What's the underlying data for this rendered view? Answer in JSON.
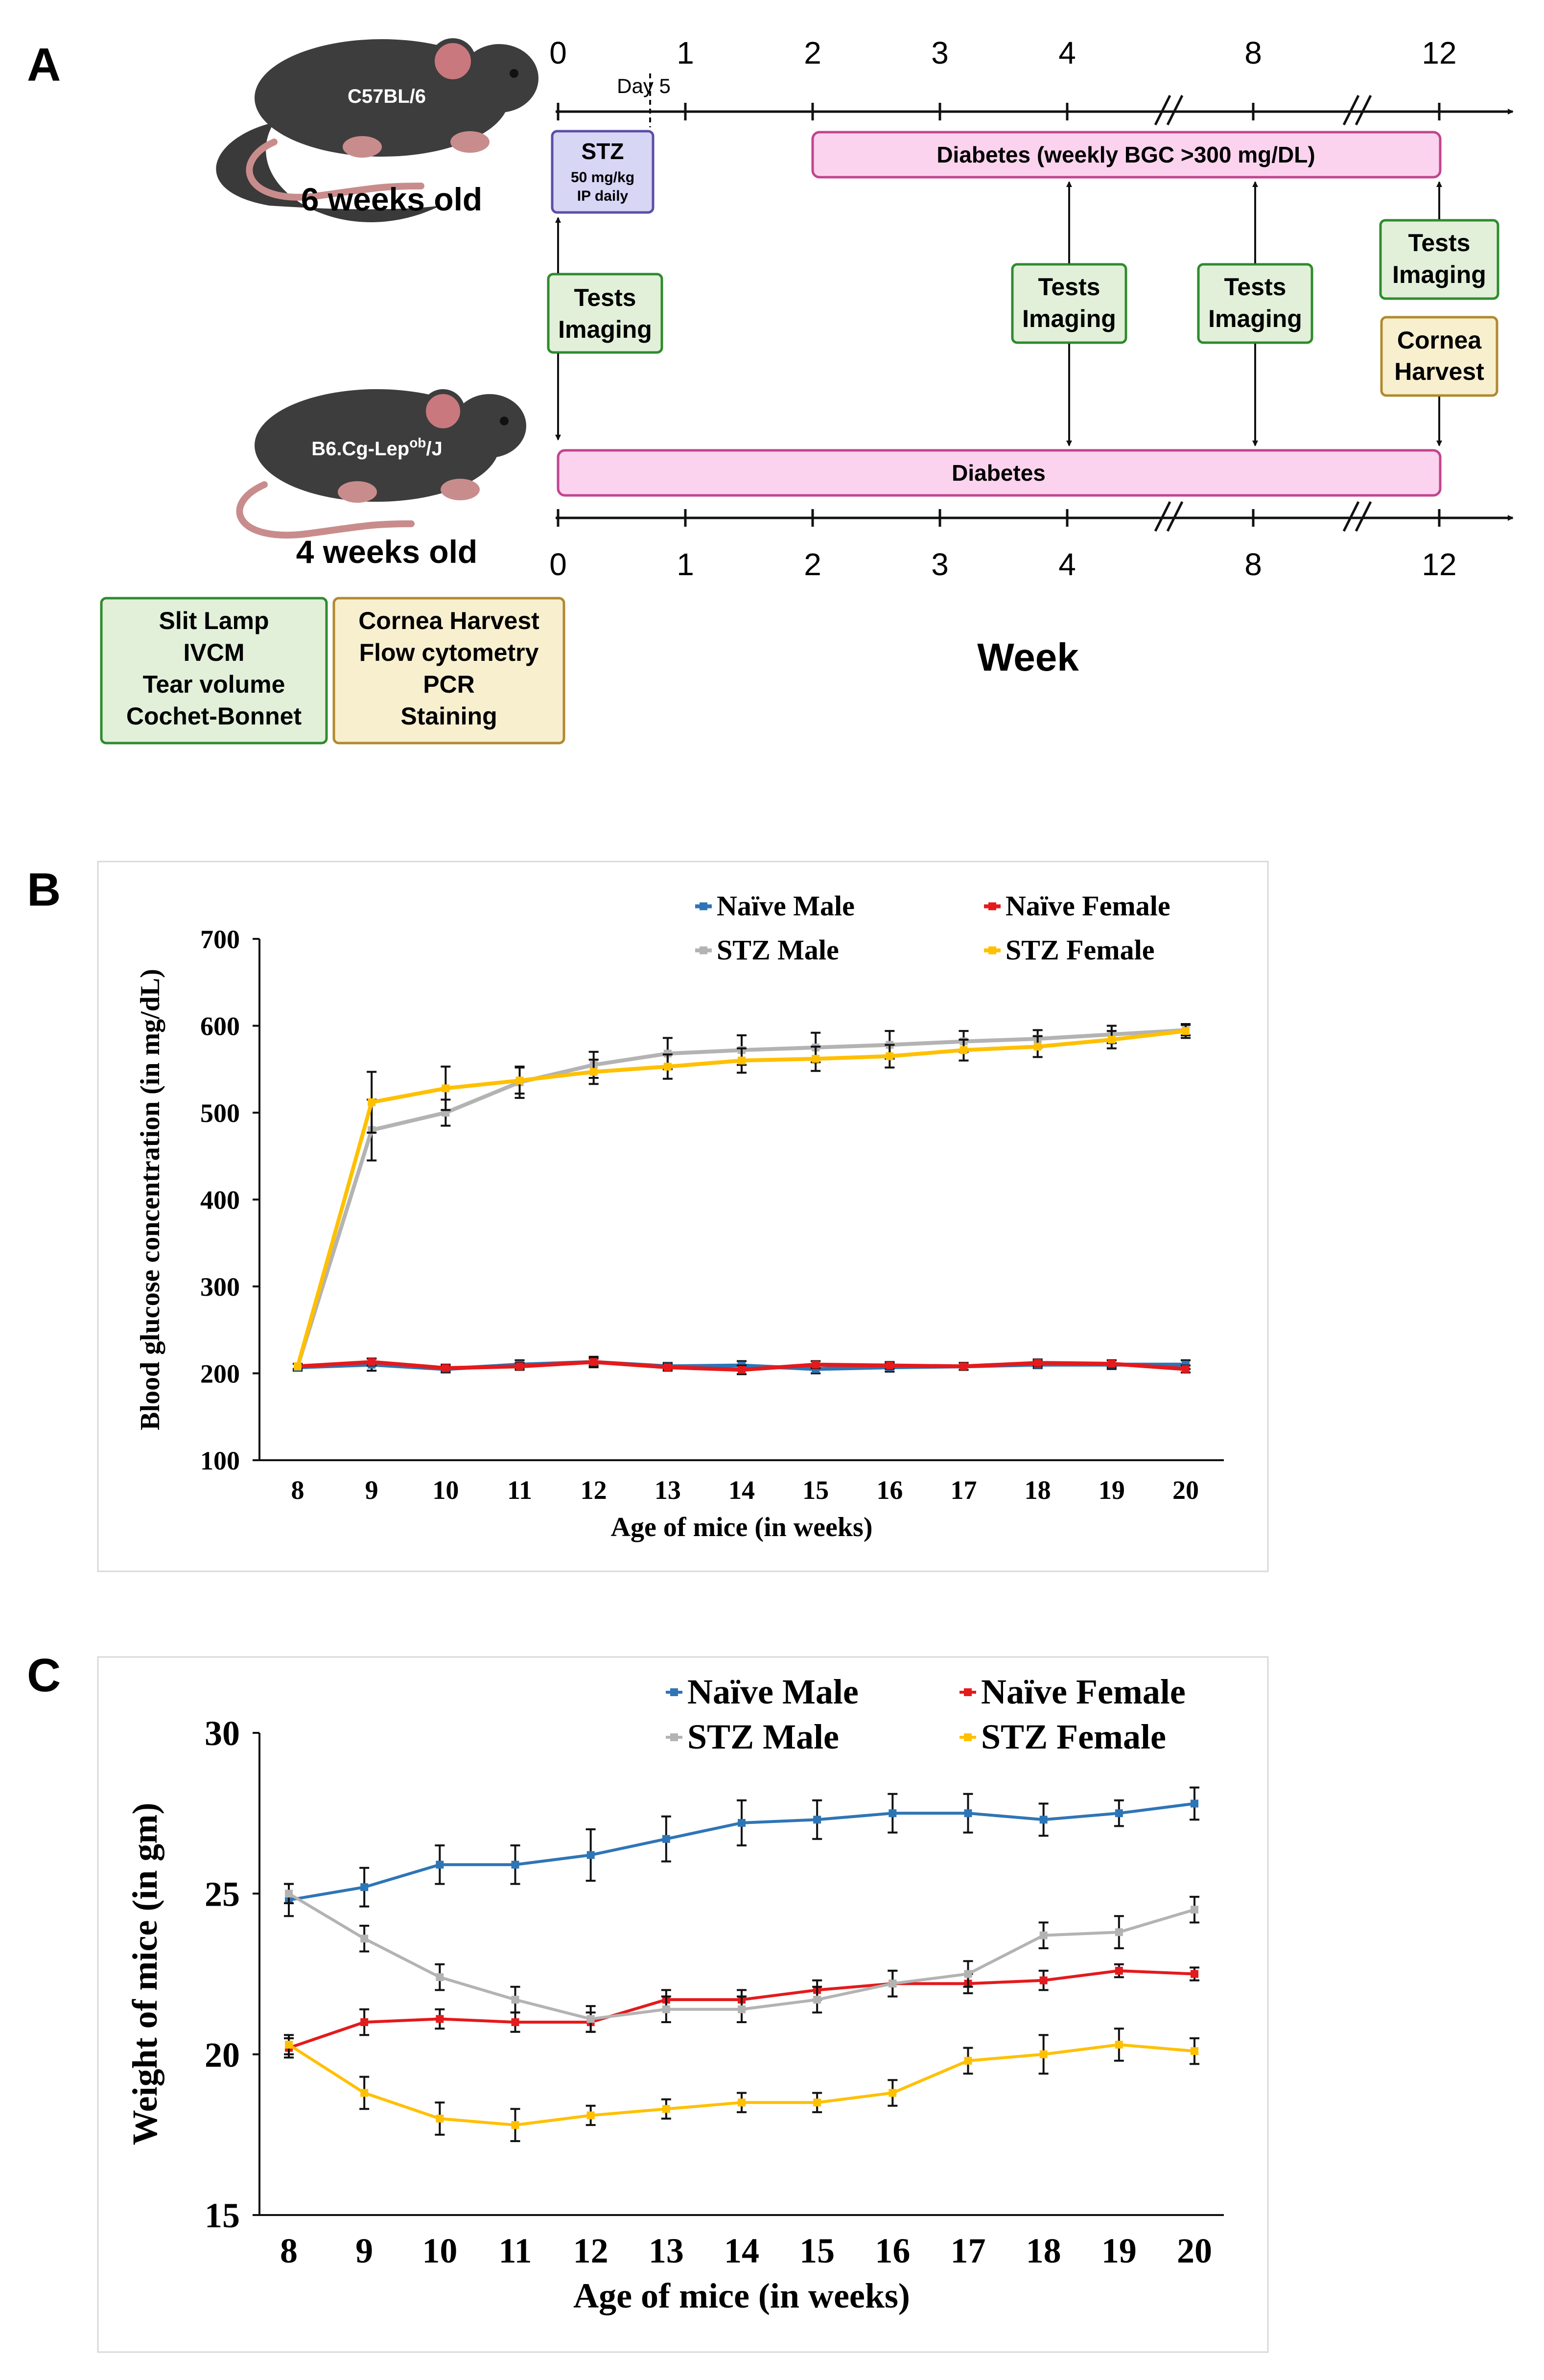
{
  "panels": {
    "a_label": "A",
    "b_label": "B",
    "c_label": "C"
  },
  "timeline": {
    "top_mouse_label": "C57BL/6",
    "top_age": "6 weeks old",
    "bottom_mouse_label_main": "B6.Cg-Lep",
    "bottom_mouse_label_sup": "ob",
    "bottom_mouse_label_end": "/J",
    "bottom_age": "4 weeks old",
    "tick_labels": [
      "0",
      "1",
      "2",
      "3",
      "4",
      "8",
      "12"
    ],
    "day_label": "Day 5",
    "stz_box": {
      "title": "STZ",
      "line1": "50 mg/kg",
      "line2": "IP daily"
    },
    "diabetes_top": "Diabetes (weekly BGC >300 mg/DL)",
    "diabetes_bottom": "Diabetes",
    "tests_line1": "Tests",
    "tests_line2": "Imaging",
    "harvest_line1": "Cornea",
    "harvest_line2": "Harvest",
    "week_label": "Week",
    "legend_green": [
      "Slit Lamp",
      "IVCM",
      "Tear volume",
      "Cochet-Bonnet"
    ],
    "legend_yellow": [
      "Cornea Harvest",
      "Flow cytometry",
      "PCR",
      "Staining"
    ],
    "colors": {
      "green_fill": "#e2f0d9",
      "green_stroke": "#2e8b2e",
      "yellow_fill": "#f8efcf",
      "yellow_stroke": "#b08a2e",
      "pink_fill": "#fbd3ee",
      "pink_stroke": "#c2448f",
      "purple_fill": "#d8d6f5",
      "purple_stroke": "#5a4ea8"
    }
  },
  "chart_data": [
    {
      "type": "line",
      "title": "",
      "xlabel": "Age of mice (in weeks)",
      "ylabel": "Blood glucose concentration (in mg/dL)",
      "categories": [
        "8",
        "9",
        "10",
        "11",
        "12",
        "13",
        "14",
        "15",
        "16",
        "17",
        "18",
        "19",
        "20"
      ],
      "ylim": [
        100,
        700
      ],
      "yticks": [
        "100",
        "200",
        "300",
        "400",
        "500",
        "600",
        "700"
      ],
      "legend_position": "top-right",
      "series": [
        {
          "name": "Naïve Male",
          "color": "#2e75b6",
          "values": [
            207,
            210,
            205,
            210,
            213,
            208,
            209,
            205,
            207,
            208,
            210,
            210,
            210
          ],
          "err": [
            4,
            7,
            4,
            5,
            6,
            4,
            5,
            5,
            5,
            4,
            4,
            5,
            5
          ]
        },
        {
          "name": "Naïve Female",
          "color": "#e41a1c",
          "values": [
            208,
            213,
            206,
            208,
            213,
            207,
            204,
            210,
            209,
            208,
            212,
            211,
            205
          ],
          "err": [
            3,
            4,
            4,
            4,
            4,
            4,
            5,
            4,
            4,
            4,
            4,
            4,
            4
          ]
        },
        {
          "name": "STZ Male",
          "color": "#b3b3b3",
          "values": [
            208,
            480,
            500,
            535,
            555,
            568,
            572,
            575,
            578,
            582,
            585,
            590,
            595
          ],
          "err": [
            3,
            35,
            15,
            18,
            15,
            18,
            17,
            17,
            16,
            12,
            10,
            10,
            6
          ]
        },
        {
          "name": "STZ Female",
          "color": "#ffc000",
          "values": [
            208,
            512,
            528,
            537,
            547,
            553,
            560,
            562,
            565,
            572,
            576,
            584,
            594
          ],
          "err": [
            3,
            35,
            25,
            15,
            14,
            14,
            14,
            14,
            13,
            12,
            12,
            10,
            8
          ]
        }
      ]
    },
    {
      "type": "line",
      "title": "",
      "xlabel": "Age of mice (in weeks)",
      "ylabel": "Weight of mice (in gm)",
      "categories": [
        "8",
        "9",
        "10",
        "11",
        "12",
        "13",
        "14",
        "15",
        "16",
        "17",
        "18",
        "19",
        "20"
      ],
      "ylim": [
        15,
        30
      ],
      "yticks": [
        "15",
        "20",
        "25",
        "30"
      ],
      "legend_position": "top-right",
      "series": [
        {
          "name": "Naïve Male",
          "color": "#2e75b6",
          "values": [
            24.8,
            25.2,
            25.9,
            25.9,
            26.2,
            26.7,
            27.2,
            27.3,
            27.5,
            27.5,
            27.3,
            27.5,
            27.8
          ],
          "err": [
            0.5,
            0.6,
            0.6,
            0.6,
            0.8,
            0.7,
            0.7,
            0.6,
            0.6,
            0.6,
            0.5,
            0.4,
            0.5
          ]
        },
        {
          "name": "Naïve Female",
          "color": "#e41a1c",
          "values": [
            20.2,
            21.0,
            21.1,
            21.0,
            21.0,
            21.7,
            21.7,
            22.0,
            22.2,
            22.2,
            22.3,
            22.6,
            22.5
          ],
          "err": [
            0.3,
            0.4,
            0.3,
            0.3,
            0.3,
            0.3,
            0.3,
            0.3,
            0.4,
            0.3,
            0.3,
            0.2,
            0.2
          ]
        },
        {
          "name": "STZ Male",
          "color": "#b3b3b3",
          "values": [
            25.0,
            23.6,
            22.4,
            21.7,
            21.1,
            21.4,
            21.4,
            21.7,
            22.2,
            22.5,
            23.7,
            23.8,
            24.5
          ],
          "err": [
            0.3,
            0.4,
            0.4,
            0.4,
            0.4,
            0.4,
            0.4,
            0.4,
            0.4,
            0.4,
            0.4,
            0.5,
            0.4
          ]
        },
        {
          "name": "STZ Female",
          "color": "#ffc000",
          "values": [
            20.3,
            18.8,
            18.0,
            17.8,
            18.1,
            18.3,
            18.5,
            18.5,
            18.8,
            19.8,
            20.0,
            20.3,
            20.1
          ],
          "err": [
            0.3,
            0.5,
            0.5,
            0.5,
            0.3,
            0.3,
            0.3,
            0.3,
            0.4,
            0.4,
            0.6,
            0.5,
            0.4
          ]
        }
      ]
    }
  ]
}
